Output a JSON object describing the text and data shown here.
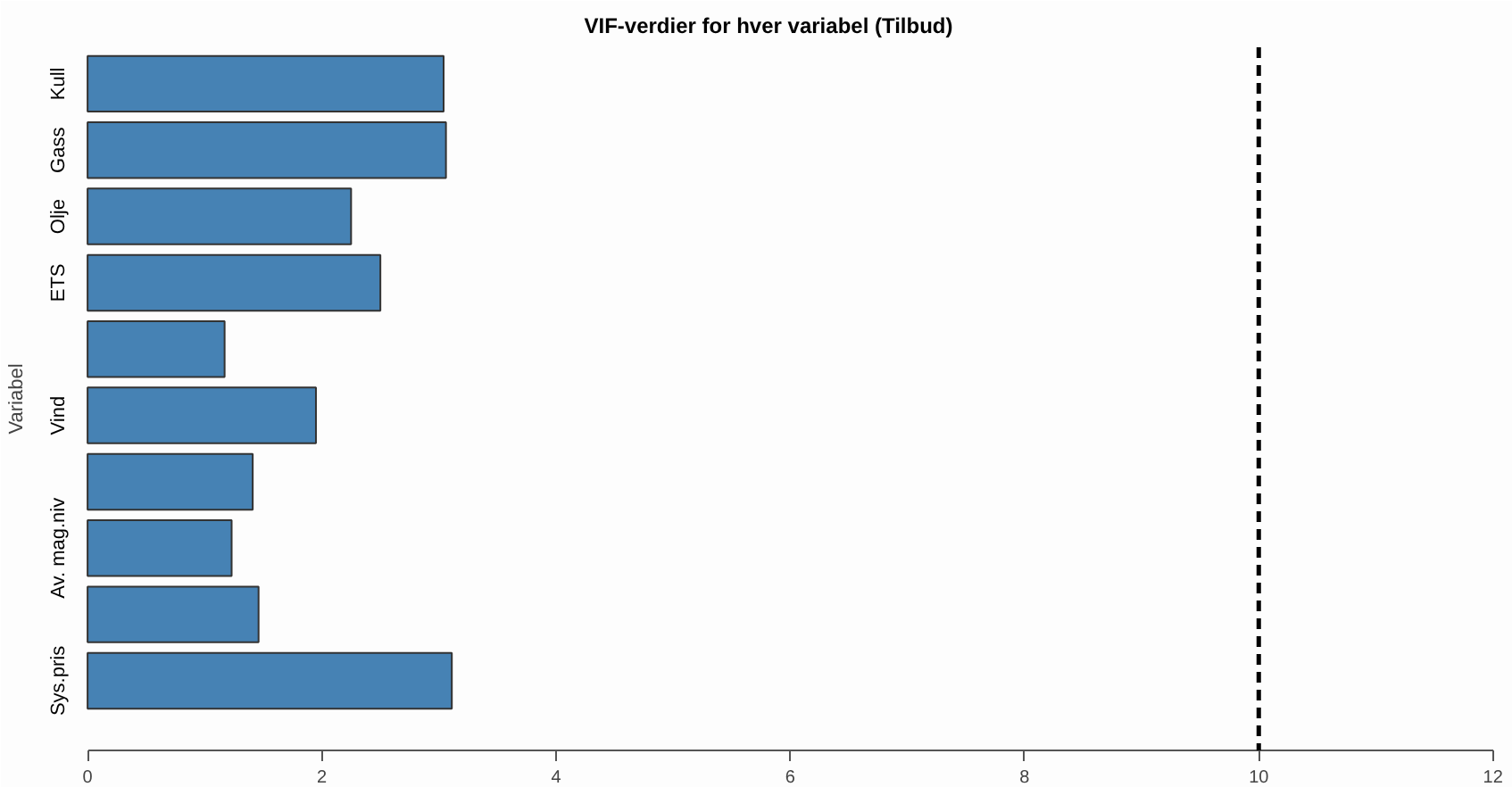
{
  "chart_data": {
    "type": "bar",
    "orientation": "horizontal",
    "title": "VIF-verdier for hver variabel (Tilbud)",
    "ylabel": "Variabel",
    "categories": [
      "Kull",
      "Gass",
      "Olje",
      "ETS",
      null,
      "Vind",
      null,
      "Av. mag.niv",
      null,
      "Sys.pris"
    ],
    "values": [
      3.04,
      3.06,
      2.25,
      2.5,
      1.17,
      1.95,
      1.41,
      1.23,
      1.46,
      3.11
    ],
    "color": "#4682b4",
    "xlim": [
      0,
      12
    ],
    "xticks": [
      0,
      2,
      4,
      6,
      8,
      10,
      12
    ],
    "grid": false,
    "ref_lines": [
      {
        "axis": "x",
        "value": 10,
        "label": null,
        "color": "#000000",
        "line_style": "dashed"
      }
    ]
  }
}
